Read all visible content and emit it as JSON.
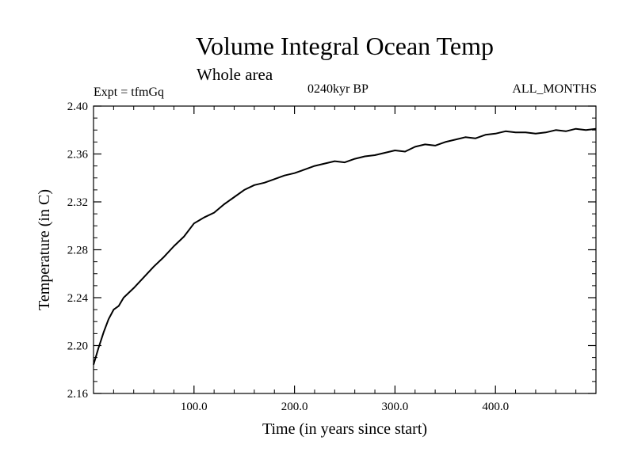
{
  "header": {
    "title": "Volume Integral Ocean Temp",
    "subtitle": "Whole area",
    "experiment": "Expt = tfmGq",
    "period": "0240kyr BP",
    "months": "ALL_MONTHS"
  },
  "chart_data": {
    "type": "line",
    "xlabel": "Time (in years since start)",
    "ylabel": "Temperature (in C)",
    "xlim": [
      0,
      500
    ],
    "ylim": [
      2.16,
      2.4
    ],
    "xticks": [
      100,
      200,
      300,
      400
    ],
    "xtick_labels": [
      "100.0",
      "200.0",
      "300.0",
      "400.0"
    ],
    "yticks": [
      2.16,
      2.2,
      2.24,
      2.28,
      2.32,
      2.36,
      2.4
    ],
    "ytick_labels": [
      "2.16",
      "2.20",
      "2.24",
      "2.28",
      "2.32",
      "2.36",
      "2.40"
    ],
    "grid": false,
    "series": [
      {
        "color": "#000000",
        "x": [
          0,
          5,
          10,
          15,
          20,
          25,
          30,
          40,
          50,
          60,
          70,
          80,
          90,
          100,
          110,
          120,
          130,
          140,
          150,
          160,
          170,
          180,
          190,
          200,
          210,
          220,
          230,
          240,
          250,
          260,
          270,
          280,
          290,
          300,
          310,
          320,
          330,
          340,
          350,
          360,
          370,
          380,
          390,
          400,
          410,
          420,
          430,
          440,
          450,
          460,
          470,
          480,
          490,
          500
        ],
        "y": [
          2.184,
          2.198,
          2.211,
          2.222,
          2.23,
          2.233,
          2.24,
          2.248,
          2.257,
          2.266,
          2.274,
          2.283,
          2.291,
          2.302,
          2.307,
          2.311,
          2.318,
          2.324,
          2.33,
          2.334,
          2.336,
          2.339,
          2.342,
          2.344,
          2.347,
          2.35,
          2.352,
          2.354,
          2.353,
          2.356,
          2.358,
          2.359,
          2.361,
          2.363,
          2.362,
          2.366,
          2.368,
          2.367,
          2.37,
          2.372,
          2.374,
          2.373,
          2.376,
          2.377,
          2.379,
          2.378,
          2.378,
          2.377,
          2.378,
          2.38,
          2.379,
          2.381,
          2.38,
          2.381
        ]
      }
    ]
  }
}
